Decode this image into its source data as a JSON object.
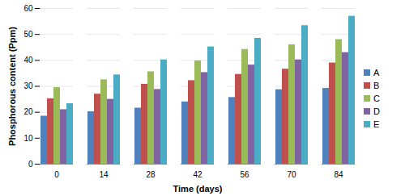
{
  "chart_data": {
    "type": "bar",
    "x_label": "Time (days)",
    "y_label": "Phosphorous content (Ppm)",
    "categories": [
      0,
      14,
      28,
      42,
      56,
      70,
      84
    ],
    "series": [
      {
        "name": "A",
        "color": "#4f81bd",
        "values": [
          18.5,
          20.2,
          21.6,
          24.0,
          25.7,
          28.7,
          29.2
        ]
      },
      {
        "name": "B",
        "color": "#c0504d",
        "values": [
          25.2,
          27.0,
          30.8,
          32.2,
          34.6,
          36.6,
          39.0
        ]
      },
      {
        "name": "C",
        "color": "#9bbb59",
        "values": [
          29.5,
          32.5,
          35.6,
          39.8,
          44.2,
          46.0,
          48.0
        ]
      },
      {
        "name": "D",
        "color": "#8064a2",
        "values": [
          21.0,
          25.0,
          28.8,
          35.3,
          38.2,
          40.2,
          43.0
        ]
      },
      {
        "name": "E",
        "color": "#4bacc6",
        "values": [
          23.3,
          34.4,
          40.2,
          45.2,
          48.5,
          53.4,
          57.0
        ]
      }
    ],
    "ylim": [
      0,
      60
    ],
    "yticks": [
      0,
      10,
      20,
      30,
      40,
      50,
      60
    ],
    "grid": true,
    "legend": "right"
  }
}
